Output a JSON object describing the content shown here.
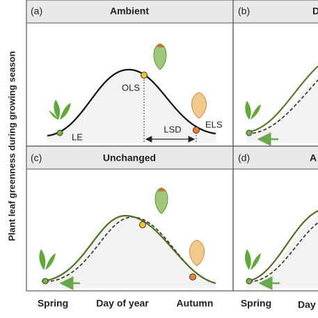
{
  "y_axis_label": "Plant leaf greenness during growing season",
  "panels": [
    {
      "label": "(a)",
      "title": "Ambient",
      "points": [
        "LE",
        "OLS",
        "LSD",
        "ELS"
      ]
    },
    {
      "label": "(b)",
      "title": "D"
    },
    {
      "label": "(c)",
      "title": "Unchanged"
    },
    {
      "label": "(d)",
      "title": "A"
    }
  ],
  "x_axis": [
    "Spring",
    "Day of year",
    "Autumn",
    "Spring",
    "Day"
  ]
}
